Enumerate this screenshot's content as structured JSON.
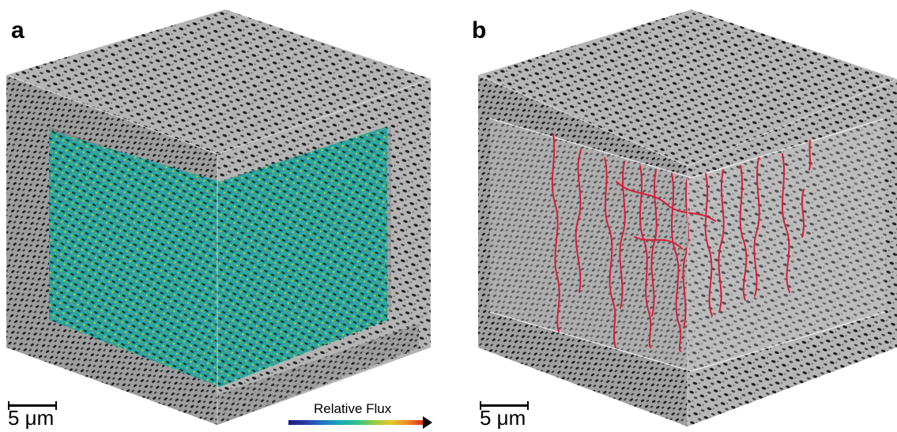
{
  "panels": [
    {
      "letter": "a",
      "scale_label": "5 μm",
      "overlay": "relative-flux-surface"
    },
    {
      "letter": "b",
      "scale_label": "5 μm",
      "overlay": "pore-pathlines"
    }
  ],
  "legend": {
    "title": "Relative Flux",
    "colormap": [
      "#1a1a7a",
      "#2a3aa8",
      "#1f74c4",
      "#19a8b8",
      "#2fbf8c",
      "#8fcb44",
      "#e6c82c",
      "#f08a22",
      "#d8281c"
    ]
  },
  "colors": {
    "solid_phase": "#a9a9a9",
    "pore_texture": "#222222",
    "flux_surface": "#23a6a0",
    "pathlines": "#d61f3c"
  }
}
